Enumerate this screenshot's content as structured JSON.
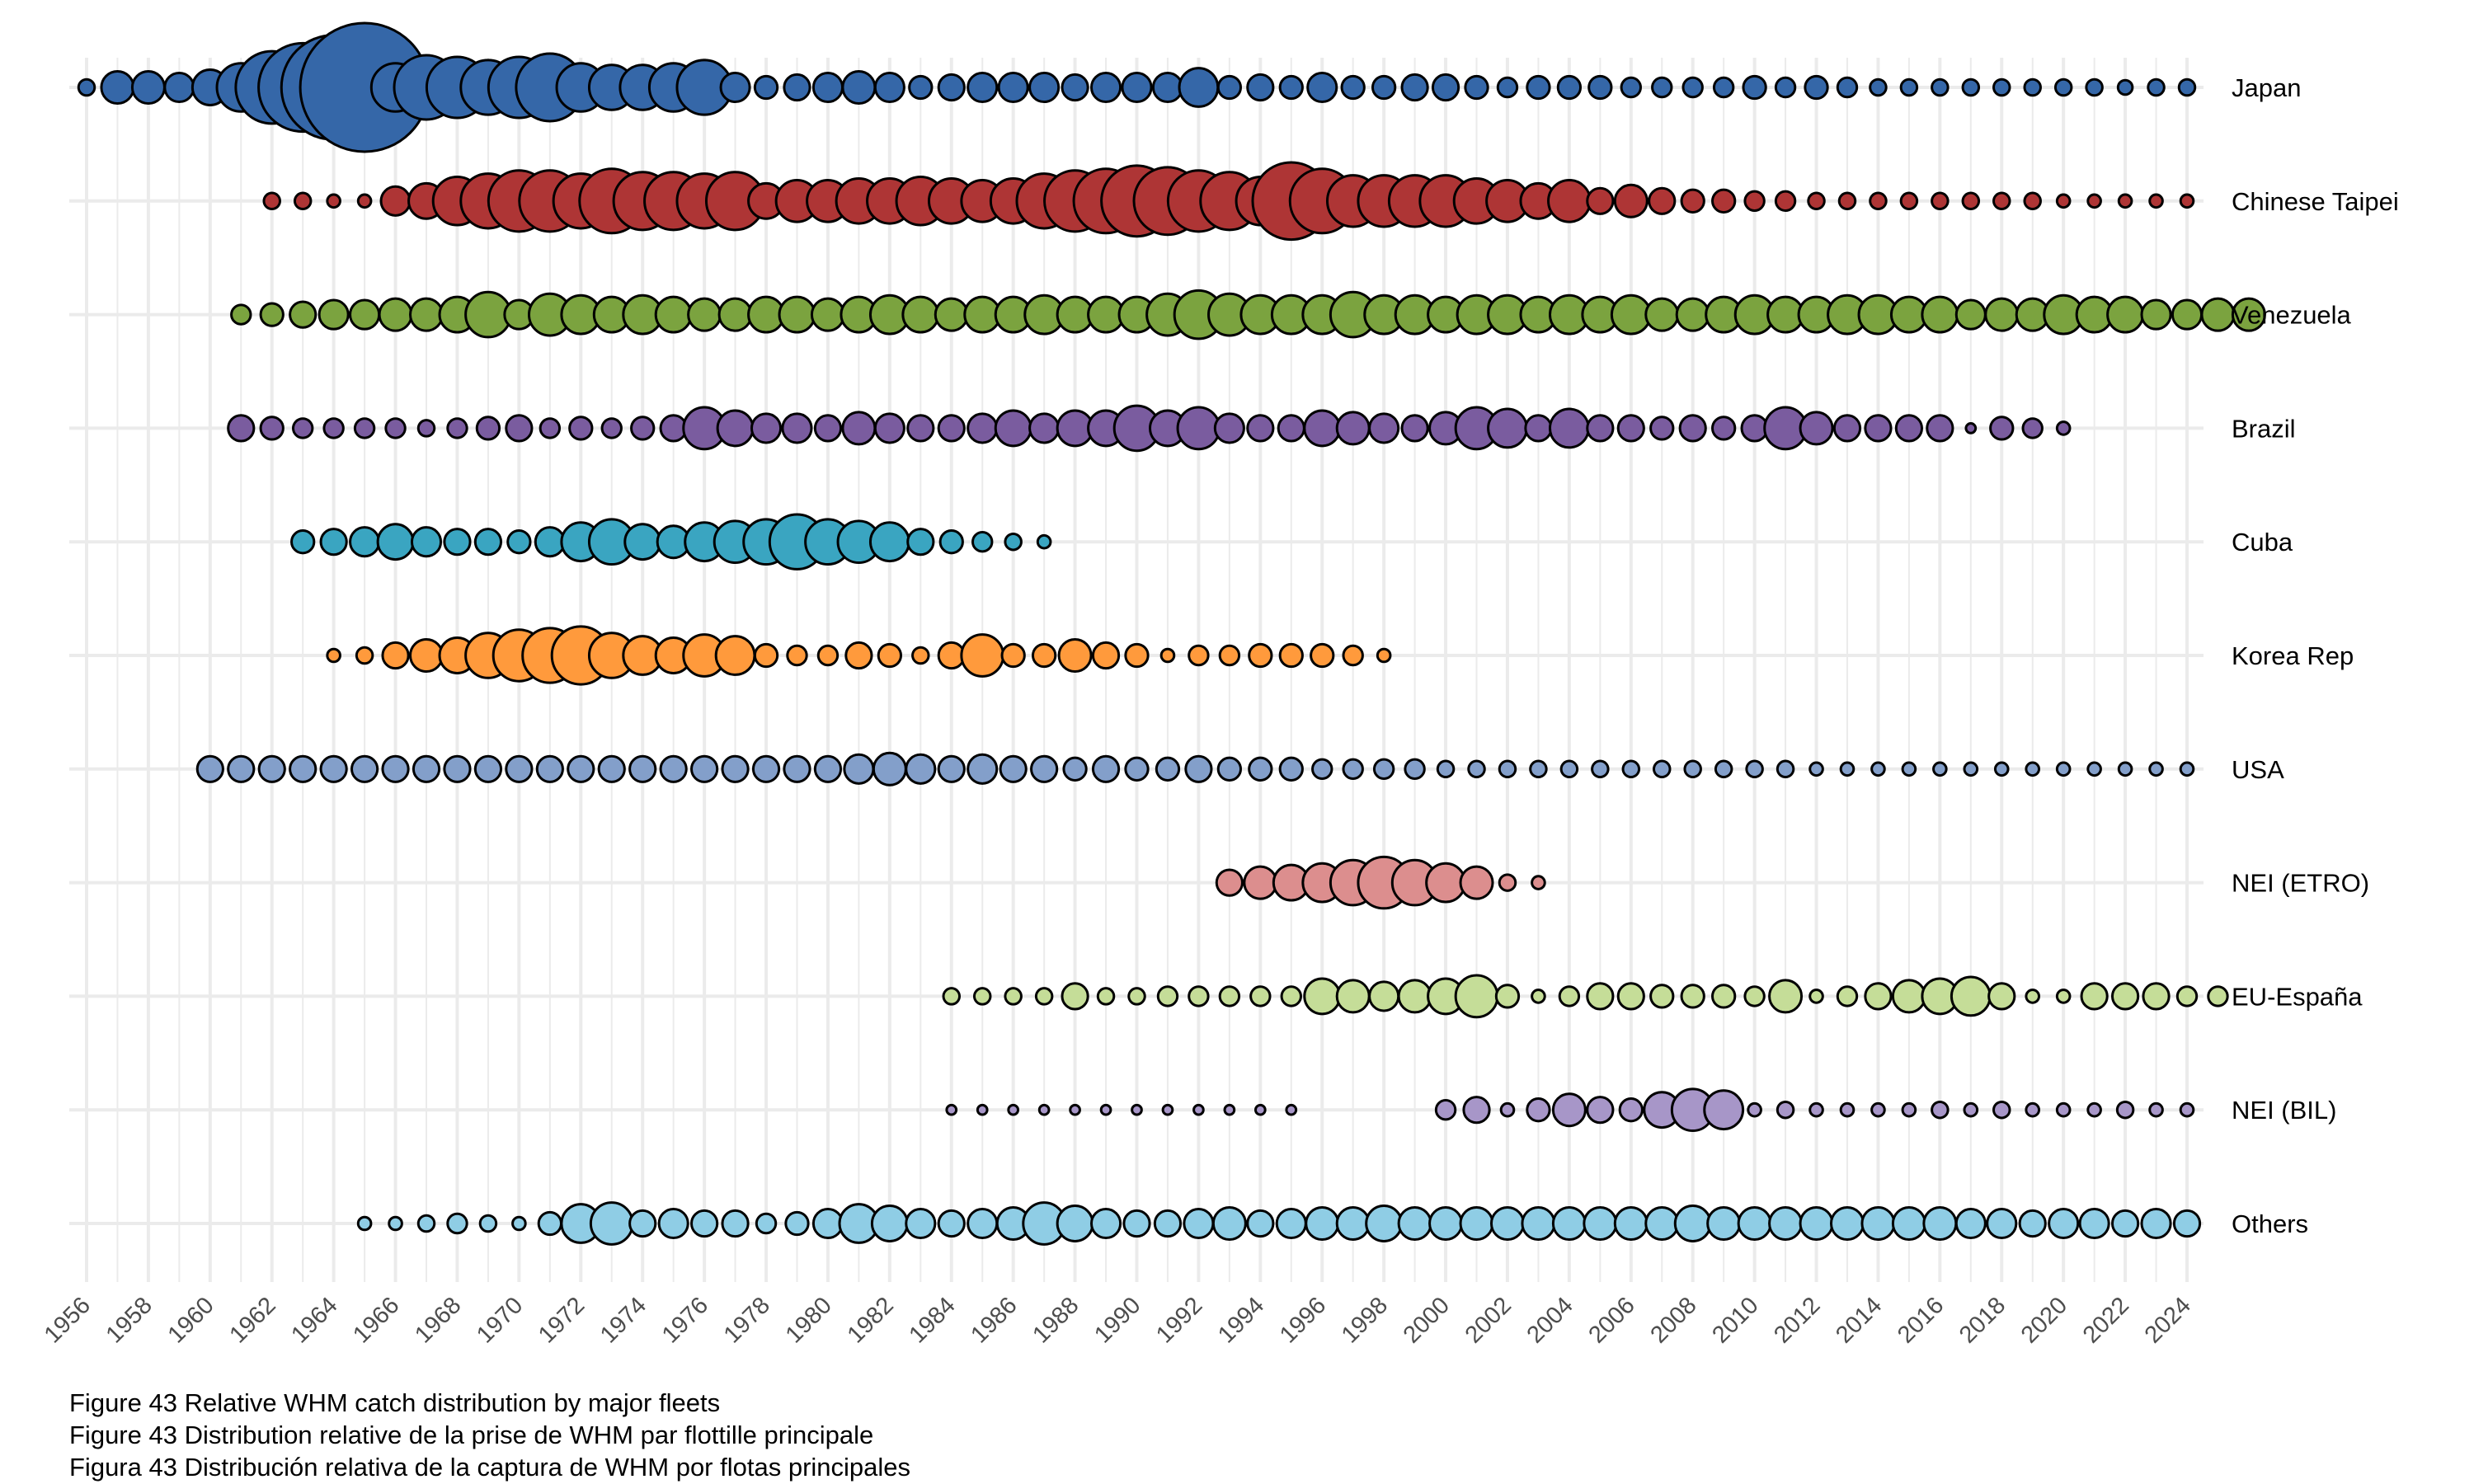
{
  "chart_data": {
    "type": "scatter",
    "subtype": "bubble",
    "title": "",
    "xlabel": "",
    "ylabel": "",
    "grid": true,
    "legend": "none",
    "x_range": [
      1956,
      2024
    ],
    "x_ticks": [
      "1956",
      "1958",
      "1960",
      "1962",
      "1964",
      "1966",
      "1968",
      "1970",
      "1972",
      "1974",
      "1976",
      "1978",
      "1980",
      "1982",
      "1984",
      "1986",
      "1988",
      "1990",
      "1992",
      "1994",
      "1996",
      "1998",
      "2000",
      "2002",
      "2004",
      "2006",
      "2008",
      "2010",
      "2012",
      "2014",
      "2016",
      "2018",
      "2020",
      "2022",
      "2024"
    ],
    "size_note": "relative bubble diameter (unitless, larger = larger relative catch)",
    "series": [
      {
        "name": "Japan",
        "color": "#3567A8",
        "start": 1956,
        "sizes": [
          10,
          20,
          20,
          18,
          22,
          30,
          45,
          55,
          65,
          80,
          30,
          40,
          38,
          34,
          38,
          42,
          30,
          28,
          28,
          30,
          34,
          18,
          14,
          16,
          18,
          20,
          18,
          14,
          16,
          18,
          18,
          18,
          16,
          18,
          18,
          18,
          24,
          14,
          16,
          14,
          18,
          14,
          14,
          16,
          16,
          14,
          12,
          14,
          14,
          14,
          12,
          12,
          12,
          12,
          14,
          12,
          14,
          12,
          10,
          10,
          10,
          10,
          10,
          10,
          10,
          10,
          9,
          10,
          10
        ]
      },
      {
        "name": "Chinese Taipei",
        "color": "#AE3535",
        "start": 1962,
        "sizes": [
          10,
          10,
          8,
          8,
          18,
          22,
          30,
          34,
          38,
          38,
          34,
          40,
          36,
          36,
          34,
          36,
          22,
          26,
          26,
          28,
          28,
          30,
          28,
          26,
          28,
          34,
          38,
          40,
          44,
          42,
          38,
          36,
          30,
          48,
          40,
          32,
          32,
          32,
          32,
          28,
          26,
          22,
          26,
          16,
          20,
          16,
          14,
          14,
          12,
          12,
          10,
          10,
          10,
          10,
          10,
          10,
          10,
          10,
          8,
          8,
          8,
          8,
          8
        ]
      },
      {
        "name": "Venezuela",
        "color": "#7BA33F",
        "start": 1961,
        "sizes": [
          12,
          14,
          16,
          18,
          18,
          20,
          20,
          22,
          28,
          18,
          26,
          24,
          22,
          24,
          22,
          20,
          20,
          22,
          22,
          20,
          22,
          24,
          22,
          20,
          22,
          22,
          24,
          22,
          22,
          22,
          26,
          30,
          26,
          24,
          24,
          24,
          28,
          24,
          24,
          22,
          24,
          24,
          22,
          24,
          22,
          24,
          20,
          20,
          22,
          24,
          22,
          22,
          24,
          24,
          22,
          22,
          18,
          20,
          20,
          24,
          22,
          22,
          18,
          18,
          20,
          20
        ]
      },
      {
        "name": "Brazil",
        "color": "#7A5C9F",
        "start": 1961,
        "sizes": [
          16,
          14,
          12,
          12,
          12,
          12,
          10,
          12,
          14,
          16,
          12,
          14,
          12,
          14,
          16,
          26,
          22,
          18,
          18,
          16,
          20,
          18,
          16,
          16,
          18,
          22,
          18,
          22,
          22,
          28,
          22,
          26,
          18,
          16,
          16,
          22,
          20,
          18,
          16,
          20,
          26,
          24,
          16,
          24,
          16,
          16,
          14,
          16,
          14,
          16,
          26,
          20,
          16,
          16,
          16,
          16,
          6,
          14,
          12,
          8
        ]
      },
      {
        "name": "Cuba",
        "color": "#3AA5C1",
        "start": 1963,
        "sizes": [
          14,
          16,
          18,
          22,
          18,
          16,
          16,
          14,
          18,
          24,
          28,
          22,
          20,
          24,
          26,
          28,
          34,
          28,
          26,
          24,
          16,
          14,
          12,
          10,
          8
        ]
      },
      {
        "name": "Korea Rep",
        "color": "#FF9A3C",
        "start": 1964,
        "sizes": [
          8,
          10,
          16,
          20,
          22,
          28,
          32,
          34,
          36,
          28,
          24,
          22,
          26,
          24,
          14,
          12,
          12,
          16,
          14,
          10,
          16,
          26,
          14,
          14,
          20,
          16,
          14,
          8,
          12,
          12,
          14,
          14,
          14,
          12,
          8
        ]
      },
      {
        "name": "USA",
        "color": "#839FCA",
        "start": 1960,
        "sizes": [
          16,
          16,
          16,
          16,
          16,
          16,
          16,
          16,
          16,
          16,
          16,
          16,
          16,
          16,
          16,
          16,
          16,
          16,
          16,
          16,
          16,
          18,
          20,
          18,
          16,
          18,
          16,
          16,
          14,
          16,
          14,
          14,
          16,
          14,
          14,
          14,
          12,
          12,
          12,
          12,
          10,
          10,
          10,
          10,
          10,
          10,
          10,
          10,
          10,
          10,
          10,
          10,
          8,
          8,
          8,
          8,
          8,
          8,
          8,
          8,
          8,
          8,
          8,
          8,
          8
        ]
      },
      {
        "name": "NEI (ETRO)",
        "color": "#DC8E8E",
        "start": 1993,
        "sizes": [
          16,
          20,
          22,
          24,
          28,
          32,
          28,
          24,
          20,
          10,
          8
        ]
      },
      {
        "name": "EU-España",
        "color": "#C5DD98",
        "start": 1984,
        "sizes": [
          10,
          10,
          10,
          10,
          16,
          10,
          10,
          12,
          12,
          12,
          12,
          12,
          22,
          20,
          18,
          20,
          22,
          26,
          14,
          8,
          12,
          16,
          16,
          14,
          14,
          14,
          12,
          20,
          8,
          12,
          16,
          20,
          22,
          24,
          16,
          8,
          8,
          16,
          16,
          16,
          12,
          12
        ]
      },
      {
        "name": "NEI (BIL)",
        "color": "#A796C8",
        "start": 1984,
        "sizes": [
          6,
          6,
          6,
          6,
          6,
          6,
          6,
          6,
          6,
          6,
          6,
          6,
          null,
          null,
          null,
          null,
          12,
          16,
          8,
          14,
          20,
          16,
          14,
          22,
          26,
          24,
          8,
          10,
          8,
          8,
          8,
          8,
          10,
          8,
          10,
          8,
          8,
          8,
          10,
          8,
          8
        ]
      },
      {
        "name": "Others",
        "color": "#8FCDE5",
        "start": 1965,
        "sizes": [
          8,
          8,
          10,
          12,
          10,
          8,
          14,
          24,
          26,
          16,
          18,
          16,
          16,
          12,
          14,
          18,
          24,
          22,
          18,
          16,
          18,
          20,
          26,
          22,
          18,
          16,
          16,
          18,
          20,
          16,
          18,
          20,
          20,
          22,
          20,
          20,
          20,
          20,
          20,
          20,
          20,
          20,
          20,
          22,
          20,
          20,
          20,
          20,
          20,
          20,
          20,
          20,
          18,
          18,
          16,
          18,
          18,
          16,
          18,
          16
        ]
      }
    ]
  },
  "captions": [
    "Figure 43 Relative WHM catch distribution by major fleets",
    "Figure 43 Distribution relative de la prise de WHM par flottille principale",
    "Figura 43 Distribución relativa de la captura de WHM por flotas principales"
  ]
}
